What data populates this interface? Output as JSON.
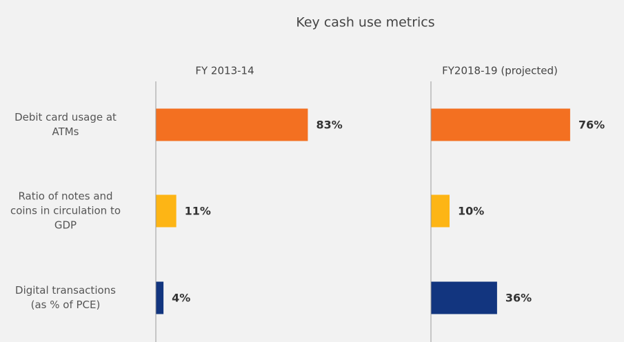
{
  "chart_data": {
    "type": "bar",
    "orientation": "horizontal",
    "title": "Key cash use metrics",
    "categories": [
      "Debit card usage at ATMs",
      "Ratio of notes and coins in circulation to GDP",
      "Digital transactions (as % of PCE)"
    ],
    "colors": [
      "#f37021",
      "#fdb515",
      "#12357f"
    ],
    "xlim": [
      0,
      100
    ],
    "series": [
      {
        "name": "FY 2013-14",
        "values": [
          83,
          11,
          4
        ],
        "value_labels": [
          "83%",
          "11%",
          "4%"
        ]
      },
      {
        "name": "FY2018-19 (projected)",
        "values": [
          76,
          10,
          36
        ],
        "value_labels": [
          "76%",
          "10%",
          "36%"
        ]
      }
    ]
  }
}
